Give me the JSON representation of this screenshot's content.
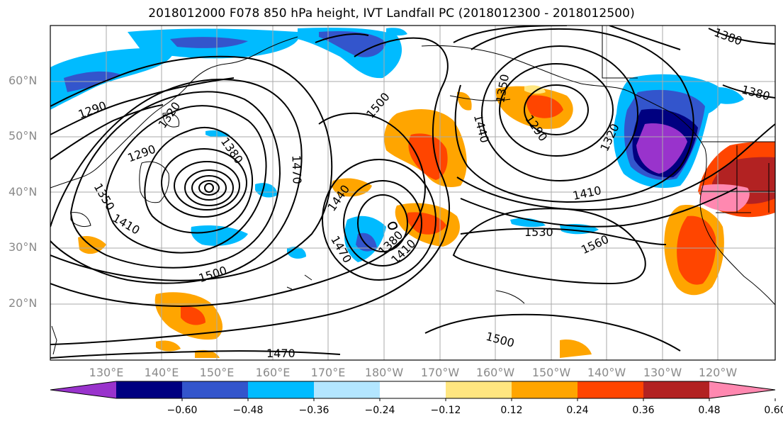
{
  "title": "2018012000 F078 850 hPa height, IVT Landfall PC (2018012300 - 2018012500)",
  "map": {
    "lat_labels": [
      "60°N",
      "50°N",
      "40°N",
      "30°N",
      "20°N"
    ],
    "lon_labels": [
      "130°E",
      "140°E",
      "150°E",
      "160°E",
      "170°E",
      "180°W",
      "170°W",
      "160°W",
      "150°W",
      "140°W",
      "130°W",
      "120°W"
    ],
    "contour_labels": [
      "1290",
      "1320",
      "1350",
      "1410",
      "1290",
      "1380",
      "1470",
      "1500",
      "1440",
      "1470",
      "1380",
      "1410",
      "1500",
      "1470",
      "1350",
      "1440",
      "1290",
      "1320",
      "1410",
      "1530",
      "1560",
      "1500",
      "1380",
      "1380"
    ],
    "colors": {
      "land_outline": "#000000",
      "grid": "#aaaaaa"
    }
  },
  "colorbar": {
    "levels": [
      -0.72,
      -0.6,
      -0.48,
      -0.36,
      -0.24,
      -0.12,
      0.12,
      0.24,
      0.36,
      0.48,
      0.6,
      0.72
    ],
    "tick_labels": [
      "−0.60",
      "−0.48",
      "−0.36",
      "−0.24",
      "−0.12",
      "0.12",
      "0.24",
      "0.36",
      "0.48",
      "0.60"
    ],
    "colors": [
      "#9933cc",
      "#000080",
      "#3355cc",
      "#00bbff",
      "#b3e6ff",
      "#ffffff",
      "#ffe680",
      "#ffa500",
      "#ff4500",
      "#b22222",
      "#ff88b0"
    ],
    "extend": "both"
  }
}
